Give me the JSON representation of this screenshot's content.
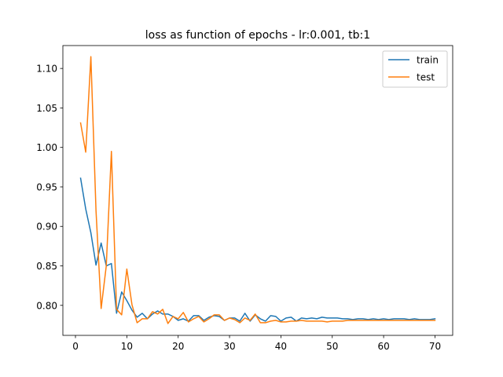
{
  "chart_data": {
    "type": "line",
    "title": "loss as function of epochs - lr:0.001, tb:1",
    "xlabel": "",
    "ylabel": "",
    "xlim": [
      -2.45,
      73.45
    ],
    "ylim": [
      0.762,
      1.129
    ],
    "xticks": [
      0,
      10,
      20,
      30,
      40,
      50,
      60,
      70
    ],
    "yticks": [
      0.8,
      0.85,
      0.9,
      0.95,
      1.0,
      1.05,
      1.1
    ],
    "ytick_labels": [
      "0.80",
      "0.85",
      "0.90",
      "0.95",
      "1.00",
      "1.05",
      "1.10"
    ],
    "grid": false,
    "legend_position": "top-right",
    "x": [
      1,
      2,
      3,
      4,
      5,
      6,
      7,
      8,
      9,
      10,
      11,
      12,
      13,
      14,
      15,
      16,
      17,
      18,
      19,
      20,
      21,
      22,
      23,
      24,
      25,
      26,
      27,
      28,
      29,
      30,
      31,
      32,
      33,
      34,
      35,
      36,
      37,
      38,
      39,
      40,
      41,
      42,
      43,
      44,
      45,
      46,
      47,
      48,
      49,
      50,
      51,
      52,
      53,
      54,
      55,
      56,
      57,
      58,
      59,
      60,
      61,
      62,
      63,
      64,
      65,
      66,
      67,
      68,
      69,
      70
    ],
    "series": [
      {
        "name": "train",
        "color": "#1f77b4",
        "values": [
          0.961,
          0.922,
          0.892,
          0.851,
          0.879,
          0.85,
          0.853,
          0.79,
          0.817,
          0.806,
          0.794,
          0.785,
          0.79,
          0.783,
          0.789,
          0.793,
          0.789,
          0.789,
          0.786,
          0.781,
          0.783,
          0.78,
          0.787,
          0.787,
          0.781,
          0.785,
          0.787,
          0.786,
          0.781,
          0.784,
          0.784,
          0.78,
          0.79,
          0.78,
          0.788,
          0.783,
          0.78,
          0.787,
          0.786,
          0.78,
          0.784,
          0.785,
          0.78,
          0.784,
          0.783,
          0.784,
          0.783,
          0.785,
          0.784,
          0.784,
          0.784,
          0.783,
          0.783,
          0.782,
          0.783,
          0.783,
          0.782,
          0.783,
          0.782,
          0.783,
          0.782,
          0.783,
          0.783,
          0.783,
          0.782,
          0.783,
          0.782,
          0.782,
          0.782,
          0.783
        ]
      },
      {
        "name": "test",
        "color": "#ff7f0e",
        "values": [
          1.031,
          0.994,
          1.115,
          0.92,
          0.796,
          0.85,
          0.995,
          0.795,
          0.788,
          0.846,
          0.801,
          0.778,
          0.783,
          0.783,
          0.792,
          0.789,
          0.795,
          0.777,
          0.786,
          0.783,
          0.791,
          0.779,
          0.783,
          0.786,
          0.779,
          0.783,
          0.788,
          0.788,
          0.781,
          0.784,
          0.782,
          0.778,
          0.784,
          0.781,
          0.789,
          0.778,
          0.778,
          0.78,
          0.781,
          0.779,
          0.779,
          0.78,
          0.78,
          0.781,
          0.78,
          0.78,
          0.78,
          0.78,
          0.779,
          0.78,
          0.78,
          0.78,
          0.781,
          0.781,
          0.781,
          0.781,
          0.781,
          0.781,
          0.781,
          0.781,
          0.781,
          0.781,
          0.781,
          0.781,
          0.781,
          0.781,
          0.781,
          0.781,
          0.781,
          0.781
        ]
      }
    ]
  }
}
